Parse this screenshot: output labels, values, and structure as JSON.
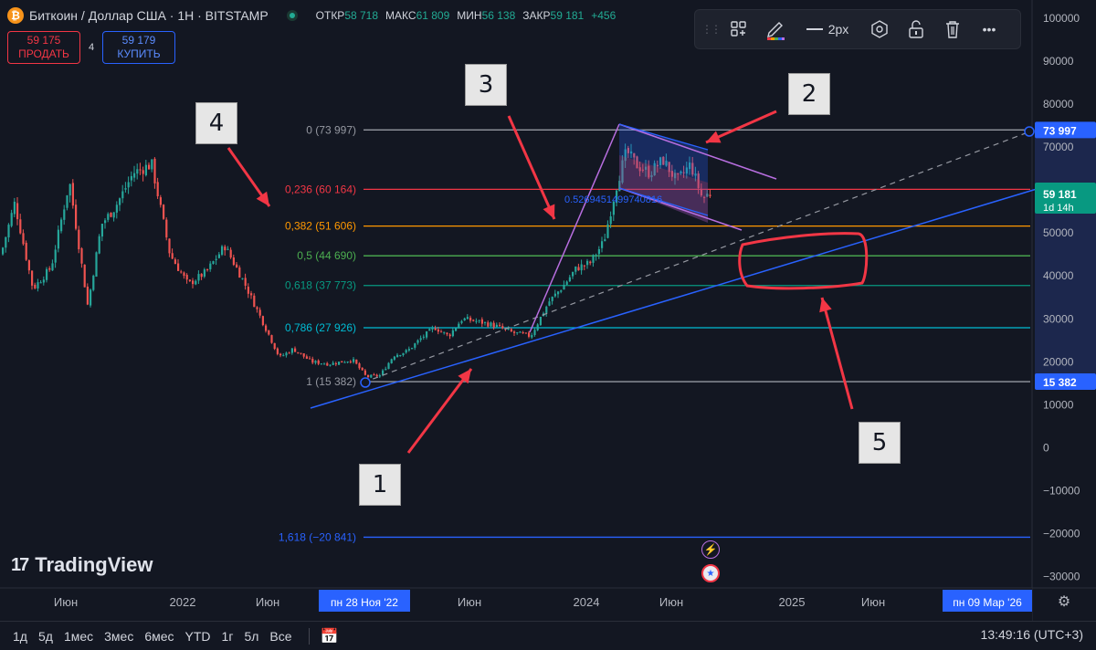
{
  "header": {
    "symbol": "Биткоин / Доллар США · 1Н · BITSTAMP",
    "coin_glyph": "₿",
    "ohlc": [
      {
        "label": "ОТКР",
        "value": "58 718"
      },
      {
        "label": "МАКС",
        "value": "61 809"
      },
      {
        "label": "МИН",
        "value": "56 138"
      },
      {
        "label": "ЗАКР",
        "value": "59 181"
      },
      {
        "label": "",
        "value": "+456"
      }
    ]
  },
  "trade": {
    "sell_price": "59 175",
    "sell_label": "ПРОДАТЬ",
    "spread": "4",
    "buy_price": "59 179",
    "buy_label": "КУПИТЬ"
  },
  "toolbar": {
    "grip": "⋮⋮",
    "items": [
      "add-templates-icon",
      "pencil-color-icon",
      "line-width",
      "visibility-icon",
      "lock-icon",
      "trash-icon",
      "more-icon"
    ],
    "line_width_label": "2px",
    "more_label": "•••"
  },
  "callouts": [
    {
      "text": "1"
    },
    {
      "text": "2"
    },
    {
      "text": "3"
    },
    {
      "text": "4"
    },
    {
      "text": "5"
    }
  ],
  "branding": {
    "logo_text": "TradingView",
    "logo_mark": "17"
  },
  "bottom_bar": {
    "ranges": [
      "1д",
      "5д",
      "1мес",
      "3мес",
      "6мес",
      "YTD",
      "1г",
      "5л",
      "Все"
    ],
    "clock": "13:49:16 (UTC+3)"
  },
  "colors": {
    "background": "#131722",
    "up": "#26a69a",
    "down": "#ef5350",
    "accent_blue": "#2962ff",
    "annotation_red": "#f23645",
    "pattern_violet": "#b86ee0"
  },
  "chart_data": {
    "type": "candlestick",
    "title": "Биткоин / Доллар США · 1Н · BITSTAMP",
    "y_axis": {
      "ticks": [
        100000,
        90000,
        80000,
        70000,
        60000,
        50000,
        40000,
        30000,
        20000,
        10000,
        0,
        -10000,
        -20000,
        -30000
      ],
      "tick_labels": [
        "100000",
        "90000",
        "80000",
        "70000",
        "60000",
        "50000",
        "40000",
        "30000",
        "20000",
        "10000",
        "0",
        "−10000",
        "−20000",
        "−30000"
      ],
      "range": [
        -32000,
        104000
      ]
    },
    "x_axis": {
      "tick_labels": [
        "Июн",
        "2022",
        "Июн",
        "Июн",
        "2024",
        "Июн",
        "2025",
        "Июн"
      ],
      "highlighted_labels": [
        "пн 28 Ноя '22",
        "пн 09 Мар '26"
      ]
    },
    "price_markers": [
      {
        "label": "73 997",
        "value": 73997,
        "style": "outline"
      },
      {
        "label": "59 181",
        "sub": "1d 14h",
        "value": 59181,
        "style": "current"
      },
      {
        "label": "15 382",
        "value": 15382,
        "style": "outline"
      }
    ],
    "fibonacci": [
      {
        "label": "0 (73 997)",
        "value": 73997,
        "color": "#9598a1"
      },
      {
        "label": "0,236 (60 164)",
        "value": 60164,
        "color": "#f23645"
      },
      {
        "label": "0,382 (51 606)",
        "value": 51606,
        "color": "#ff9800"
      },
      {
        "label": "0,5 (44 690)",
        "value": 44690,
        "color": "#4caf50"
      },
      {
        "label": "0,618 (37 773)",
        "value": 37773,
        "color": "#089981"
      },
      {
        "label": "0,786 (27 926)",
        "value": 27926,
        "color": "#00bcd4"
      },
      {
        "label": "1 (15 382)",
        "value": 15382,
        "color": "#9598a1"
      },
      {
        "label": "1,618 (−20 841)",
        "value": -20841,
        "color": "#2962ff"
      }
    ],
    "annotation_text": "0.5269451499740816",
    "price_path": [
      [
        0,
        45000
      ],
      [
        15,
        57000
      ],
      [
        35,
        37000
      ],
      [
        55,
        42000
      ],
      [
        75,
        62000
      ],
      [
        95,
        33000
      ],
      [
        110,
        52000
      ],
      [
        125,
        56000
      ],
      [
        145,
        64000
      ],
      [
        165,
        66000
      ],
      [
        185,
        45000
      ],
      [
        205,
        38000
      ],
      [
        225,
        41000
      ],
      [
        245,
        47000
      ],
      [
        265,
        39000
      ],
      [
        285,
        30000
      ],
      [
        305,
        21000
      ],
      [
        320,
        23000
      ],
      [
        340,
        20000
      ],
      [
        360,
        19500
      ],
      [
        385,
        20500
      ],
      [
        400,
        16500
      ],
      [
        415,
        16800
      ],
      [
        430,
        21500
      ],
      [
        445,
        22500
      ],
      [
        460,
        25500
      ],
      [
        475,
        28000
      ],
      [
        490,
        26000
      ],
      [
        505,
        30000
      ],
      [
        520,
        29500
      ],
      [
        540,
        28500
      ],
      [
        560,
        26800
      ],
      [
        580,
        26000
      ],
      [
        600,
        34000
      ],
      [
        615,
        37500
      ],
      [
        630,
        41800
      ],
      [
        645,
        43000
      ],
      [
        660,
        48000
      ],
      [
        675,
        62000
      ],
      [
        685,
        69000
      ],
      [
        695,
        66000
      ],
      [
        710,
        64000
      ],
      [
        725,
        67000
      ],
      [
        740,
        62000
      ],
      [
        755,
        66000
      ],
      [
        768,
        58000
      ],
      [
        775,
        59181
      ]
    ]
  }
}
